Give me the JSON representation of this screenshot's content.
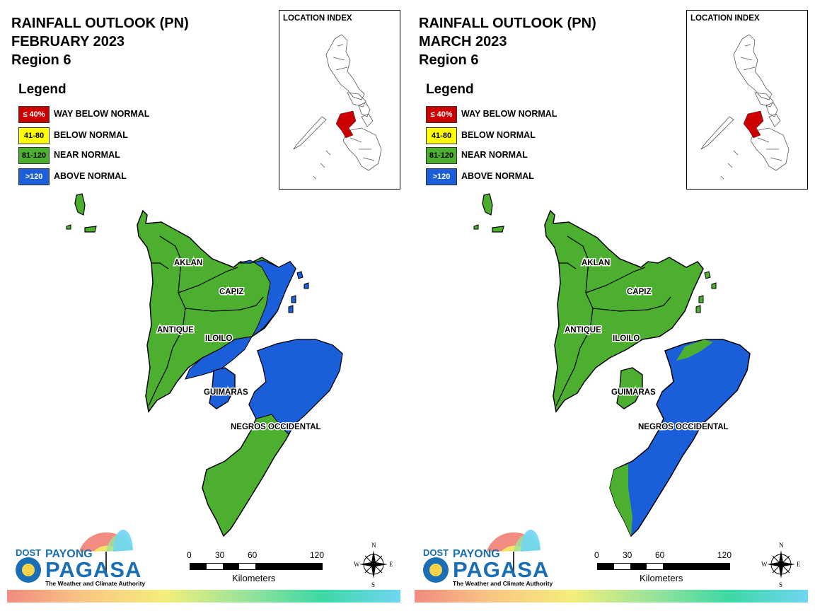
{
  "legend_colors": {
    "way_below": "#cc0000",
    "below": "#ffff00",
    "near": "#4caf2f",
    "above": "#1a5fd9"
  },
  "legend": {
    "heading": "Legend",
    "items": [
      {
        "code": "≤ 40%",
        "label": "WAY BELOW NORMAL",
        "color": "#cc0000",
        "text_color": "#ffffff"
      },
      {
        "code": "41-80",
        "label": "BELOW NORMAL",
        "color": "#ffff00",
        "text_color": "#000000"
      },
      {
        "code": "81-120",
        "label": "NEAR NORMAL",
        "color": "#4caf2f",
        "text_color": "#000000"
      },
      {
        "code": ">120",
        "label": "ABOVE NORMAL",
        "color": "#1a5fd9",
        "text_color": "#ffffff"
      }
    ]
  },
  "location_index_label": "LOCATION INDEX",
  "provinces": {
    "aklan": "AKLAN",
    "capiz": "CAPIZ",
    "antique": "ANTIQUE",
    "iloilo": "ILOILO",
    "guimaras": "GUIMARAS",
    "negros": "NEGROS OCCIDENTAL"
  },
  "scale": {
    "ticks": [
      "0",
      "30",
      "60",
      "120"
    ],
    "unit": "Kilometers"
  },
  "compass": {
    "n": "N",
    "s": "S",
    "e": "E",
    "w": "W"
  },
  "logo": {
    "dost": "DOST",
    "payong": "PAYONG",
    "pagasa": "PAGASA",
    "tagline": "The Weather and Climate Authority"
  },
  "panels": [
    {
      "title_line1": "RAINFALL OUTLOOK (PN)",
      "title_line2": "FEBRUARY 2023",
      "title_line3": "Region 6",
      "categories": {
        "aklan": "NEAR NORMAL",
        "capiz": "NEAR NORMAL",
        "antique": "NEAR NORMAL",
        "iloilo_west": "NEAR NORMAL",
        "iloilo_southeast": "ABOVE NORMAL",
        "iloilo_northeast": "ABOVE NORMAL",
        "guimaras": "ABOVE NORMAL",
        "negros_north": "ABOVE NORMAL",
        "negros_south": "NEAR NORMAL"
      }
    },
    {
      "title_line1": "RAINFALL OUTLOOK (PN)",
      "title_line2": "MARCH 2023",
      "title_line3": "Region 6",
      "categories": {
        "aklan": "NEAR NORMAL",
        "capiz": "NEAR NORMAL",
        "antique": "NEAR NORMAL",
        "iloilo": "NEAR NORMAL",
        "guimaras": "NEAR NORMAL",
        "negros_main": "ABOVE NORMAL",
        "negros_southwest_tip": "NEAR NORMAL",
        "negros_north_tip": "NEAR NORMAL"
      }
    }
  ]
}
